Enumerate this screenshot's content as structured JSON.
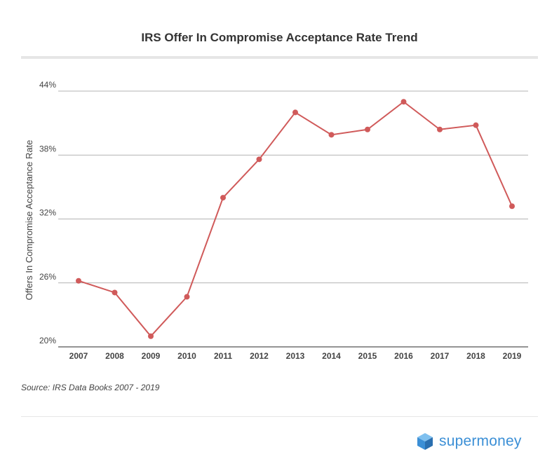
{
  "title": "IRS Offer In Compromise Acceptance Rate Trend",
  "source": "Source: IRS Data Books 2007 - 2019",
  "brand": {
    "name": "supermoney",
    "icon": "supermoney-logo-icon",
    "color": "#3b8fd6"
  },
  "chart_data": {
    "type": "line",
    "title": "IRS Offer In Compromise Acceptance Rate Trend",
    "xlabel": "",
    "ylabel": "Offers In Compromise Acceptance Rate",
    "ylim": [
      20,
      44
    ],
    "yticks": [
      20,
      26,
      32,
      38,
      44
    ],
    "ytick_labels": [
      "20%",
      "26%",
      "32%",
      "38%",
      "44%"
    ],
    "categories": [
      "2007",
      "2008",
      "2009",
      "2010",
      "2011",
      "2012",
      "2013",
      "2014",
      "2015",
      "2016",
      "2017",
      "2018",
      "2019"
    ],
    "series": [
      {
        "values": [
          26.2,
          25.1,
          21.0,
          24.7,
          34.0,
          37.6,
          42.0,
          39.9,
          40.4,
          43.0,
          40.4,
          40.8,
          33.2
        ],
        "color": "#d05a5a"
      }
    ],
    "grid": true,
    "legend": "none"
  }
}
